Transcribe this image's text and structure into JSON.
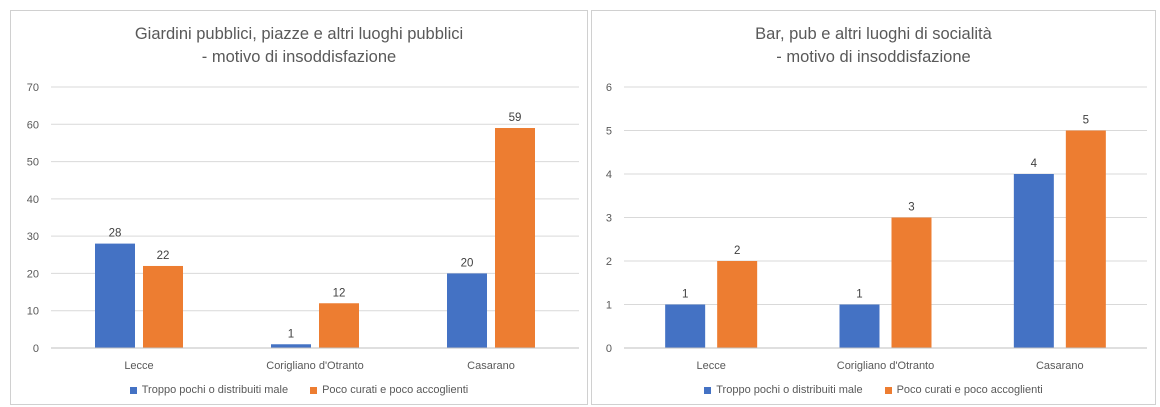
{
  "chart_data": [
    {
      "type": "bar",
      "title_lines": [
        "Giardini pubblici, piazze e altri luoghi pubblici",
        "- motivo di insoddisfazione"
      ],
      "categories": [
        "Lecce",
        "Corigliano d'Otranto",
        "Casarano"
      ],
      "series": [
        {
          "name": "Troppo pochi o distribuiti male",
          "values": [
            28,
            1,
            20
          ],
          "color": "#4472C4"
        },
        {
          "name": "Poco curati e poco accoglienti",
          "values": [
            22,
            12,
            59
          ],
          "color": "#ED7D31"
        }
      ],
      "ylim": [
        0,
        70
      ],
      "yticks": [
        "0",
        "10",
        "20",
        "30",
        "40",
        "50",
        "60",
        "70"
      ],
      "grid": true,
      "legend_position": "bottom"
    },
    {
      "type": "bar",
      "title_lines": [
        "Bar, pub e altri luoghi di socialità",
        "- motivo di insoddisfazione"
      ],
      "categories": [
        "Lecce",
        "Corigliano d'Otranto",
        "Casarano"
      ],
      "series": [
        {
          "name": "Troppo pochi o distribuiti male",
          "values": [
            1,
            1,
            4
          ],
          "color": "#4472C4"
        },
        {
          "name": "Poco curati e poco accoglienti",
          "values": [
            2,
            3,
            5
          ],
          "color": "#ED7D31"
        }
      ],
      "ylim": [
        0,
        6
      ],
      "yticks": [
        "0",
        "1",
        "2",
        "3",
        "4",
        "5",
        "6"
      ],
      "grid": true,
      "legend_position": "bottom"
    }
  ]
}
